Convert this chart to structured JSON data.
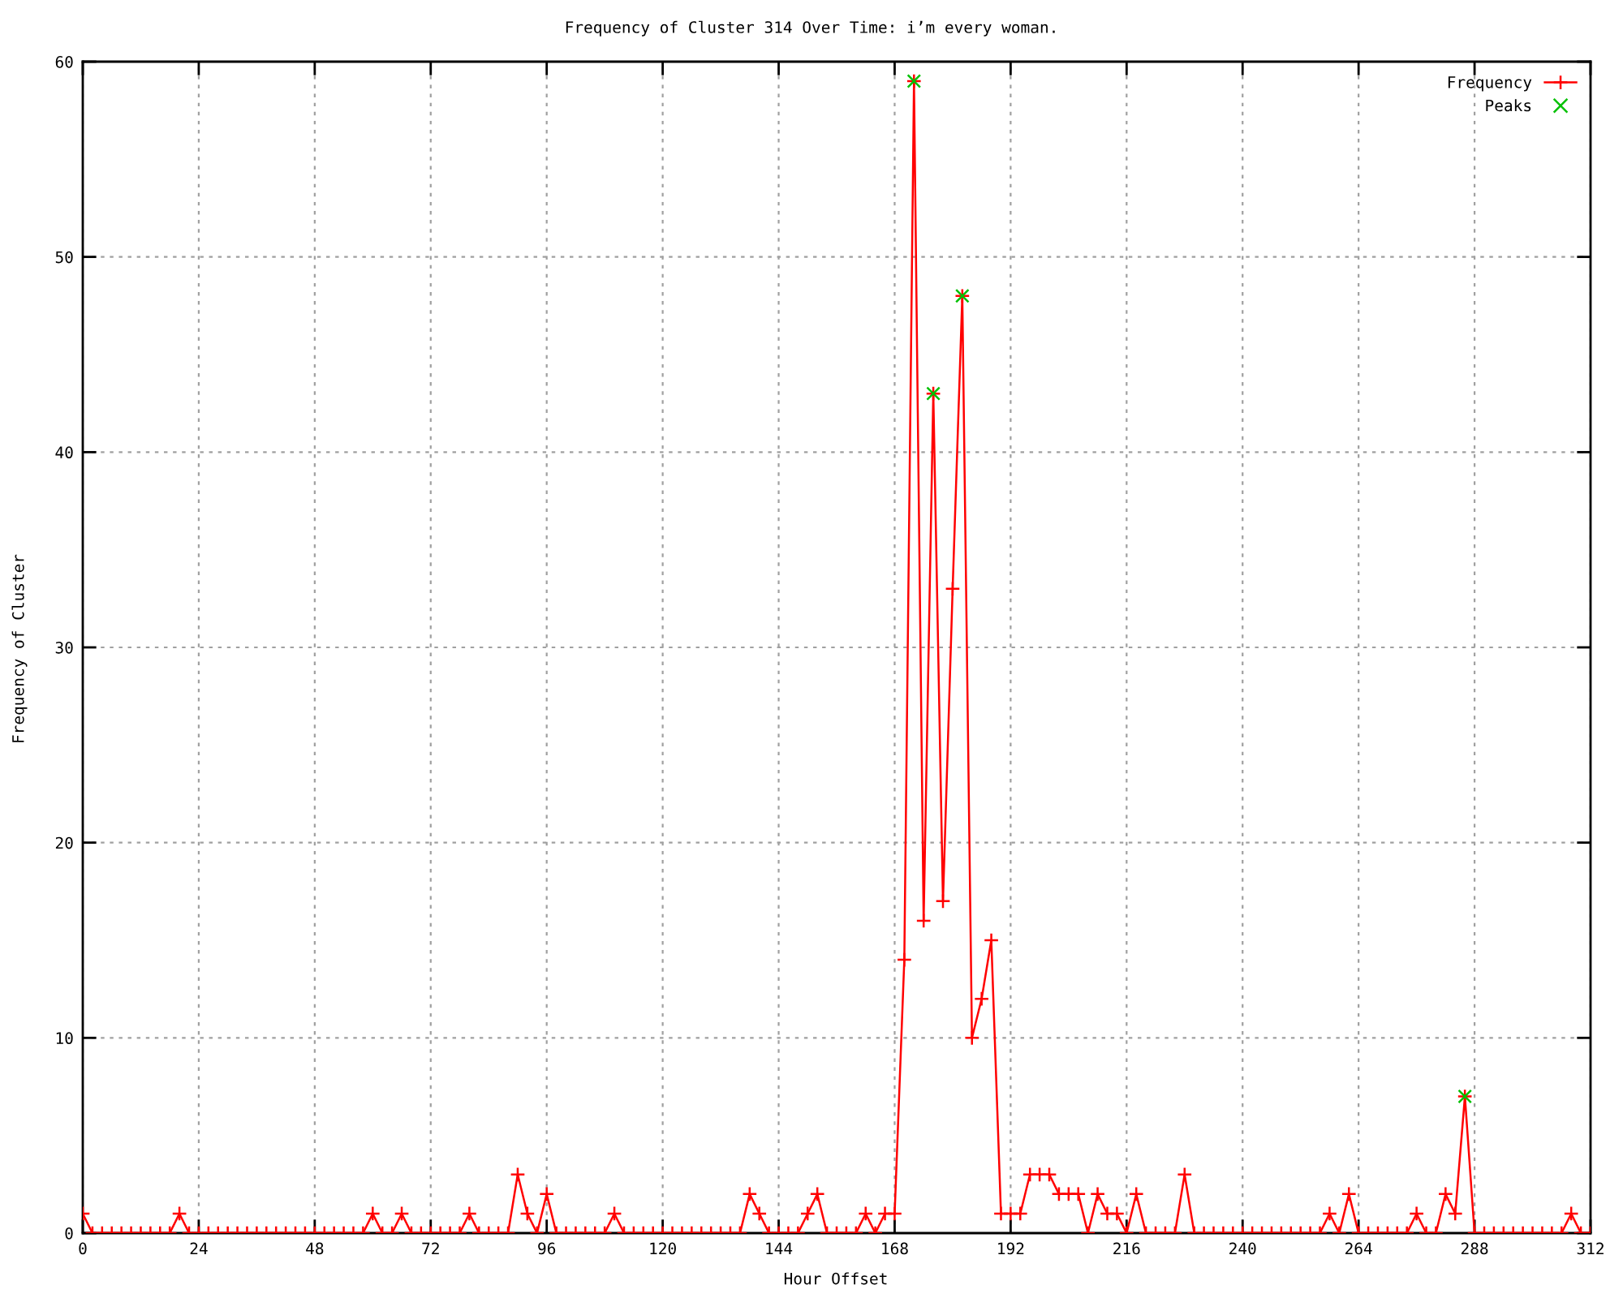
{
  "chart_data": {
    "type": "line",
    "title": "Frequency of Cluster 314 Over Time: i’m every woman.",
    "xlabel": "Hour Offset",
    "ylabel": "Frequency of Cluster",
    "xlim": [
      0,
      312
    ],
    "xticks": [
      0,
      24,
      48,
      72,
      96,
      120,
      144,
      168,
      192,
      216,
      240,
      264,
      288,
      312
    ],
    "ylim": [
      0,
      60
    ],
    "yticks": [
      0,
      10,
      20,
      30,
      40,
      50,
      60
    ],
    "grid": true,
    "legend": "top right",
    "x": [
      0,
      2,
      4,
      6,
      8,
      10,
      12,
      14,
      16,
      18,
      20,
      22,
      24,
      26,
      28,
      30,
      32,
      34,
      36,
      38,
      40,
      42,
      44,
      46,
      48,
      50,
      52,
      54,
      56,
      58,
      60,
      62,
      64,
      66,
      68,
      70,
      72,
      74,
      76,
      78,
      80,
      82,
      84,
      86,
      88,
      90,
      92,
      94,
      96,
      98,
      100,
      102,
      104,
      106,
      108,
      110,
      112,
      114,
      116,
      118,
      120,
      122,
      124,
      126,
      128,
      130,
      132,
      134,
      136,
      138,
      140,
      142,
      144,
      146,
      148,
      150,
      152,
      154,
      156,
      158,
      160,
      162,
      164,
      166,
      168,
      170,
      172,
      174,
      176,
      178,
      180,
      182,
      184,
      186,
      188,
      190,
      192,
      194,
      196,
      198,
      200,
      202,
      204,
      206,
      208,
      210,
      212,
      214,
      216,
      218,
      220,
      222,
      224,
      226,
      228,
      230,
      232,
      234,
      236,
      238,
      240,
      242,
      244,
      246,
      248,
      250,
      252,
      254,
      256,
      258,
      260,
      262,
      264,
      266,
      268,
      270,
      272,
      274,
      276,
      278,
      280,
      282,
      284,
      286,
      288,
      290,
      292,
      294,
      296,
      298,
      300,
      302,
      304,
      306,
      308,
      310,
      312
    ],
    "series": [
      {
        "name": "Frequency",
        "color": "#ff0000",
        "marker": "cross",
        "line_style": "solid",
        "values": [
          1,
          0,
          0,
          0,
          0,
          0,
          0,
          0,
          0,
          0,
          1,
          0,
          0,
          0,
          0,
          0,
          0,
          0,
          0,
          0,
          0,
          0,
          0,
          0,
          0,
          0,
          0,
          0,
          0,
          0,
          1,
          0,
          0,
          1,
          0,
          0,
          0,
          0,
          0,
          0,
          1,
          0,
          0,
          0,
          0,
          3,
          1,
          0,
          2,
          0,
          0,
          0,
          0,
          0,
          0,
          1,
          0,
          0,
          0,
          0,
          0,
          0,
          0,
          0,
          0,
          0,
          0,
          0,
          0,
          2,
          1,
          0,
          0,
          0,
          0,
          1,
          2,
          0,
          0,
          0,
          0,
          1,
          0,
          1,
          1,
          14,
          59,
          16,
          43,
          17,
          33,
          48,
          10,
          12,
          15,
          1,
          1,
          1,
          3,
          3,
          3,
          2,
          2,
          2,
          0,
          2,
          1,
          1,
          0,
          2,
          0,
          0,
          0,
          0,
          3,
          0,
          0,
          0,
          0,
          0,
          0,
          0,
          0,
          0,
          0,
          0,
          0,
          0,
          0,
          1,
          0,
          2,
          0,
          0,
          0,
          0,
          0,
          0,
          1,
          0,
          0,
          2,
          1,
          7,
          0,
          0,
          0,
          0,
          0,
          0,
          0,
          0,
          0,
          0,
          1,
          0,
          0
        ]
      },
      {
        "name": "Peaks",
        "type": "scatter",
        "color": "#00c000",
        "marker": "cross",
        "x": [
          172,
          176,
          182,
          286
        ],
        "values": [
          59,
          43,
          48,
          7
        ]
      }
    ]
  }
}
